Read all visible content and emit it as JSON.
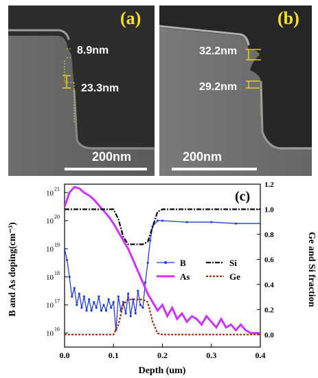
{
  "panel_a": {
    "label": "(a)",
    "measurement_top": "8.9nm",
    "measurement_bottom": "23.3nm",
    "scale_bar": "200nm"
  },
  "panel_b": {
    "label": "(b)",
    "measurement_top": "32.2nm",
    "measurement_bottom": "29.2nm",
    "scale_bar": "200nm"
  },
  "colors": {
    "label_yellow": "#f7e31b",
    "sem_background": "#2f2f2f",
    "B": "#1f3fd6",
    "As": "#cc33ff",
    "Si": "#000000",
    "Ge": "#a52a0a"
  },
  "chart_data": {
    "type": "line",
    "label": "(c)",
    "xlabel": "Depth (um)",
    "ylabel_left": "B and As doping(cm⁻³)",
    "ylabel_right": "Ge and Si fraction",
    "xlim": [
      0.0,
      0.4
    ],
    "xticks": [
      "0.0",
      "0.1",
      "0.2",
      "0.3",
      "0.4"
    ],
    "ylim_left_log10": [
      15.5,
      21.3
    ],
    "yticks_left": [
      "10",
      "10",
      "10",
      "10",
      "10",
      "10"
    ],
    "yticks_left_exp": [
      "16",
      "17",
      "18",
      "19",
      "20",
      "21"
    ],
    "ylim_right": [
      -0.1,
      1.2
    ],
    "yticks_right": [
      "0.0",
      "0.2",
      "0.4",
      "0.6",
      "0.8",
      "1.0",
      "1.2"
    ],
    "legend_placement": "center-right",
    "series": [
      {
        "name": "B",
        "axis": "left",
        "x": [
          0.0,
          0.005,
          0.01,
          0.015,
          0.02,
          0.025,
          0.03,
          0.035,
          0.04,
          0.045,
          0.05,
          0.055,
          0.06,
          0.065,
          0.07,
          0.075,
          0.08,
          0.085,
          0.09,
          0.095,
          0.1,
          0.105,
          0.11,
          0.115,
          0.12,
          0.125,
          0.13,
          0.135,
          0.14,
          0.145,
          0.15,
          0.155,
          0.16,
          0.165,
          0.17,
          0.175,
          0.18,
          0.19,
          0.2,
          0.25,
          0.3,
          0.35,
          0.4
        ],
        "log10_values": [
          19.0,
          18.6,
          18.0,
          17.3,
          17.6,
          17.0,
          17.4,
          16.9,
          17.3,
          16.8,
          17.2,
          16.8,
          17.1,
          16.9,
          17.3,
          16.8,
          17.0,
          16.8,
          17.2,
          16.9,
          17.1,
          16.1,
          17.3,
          16.8,
          17.1,
          16.7,
          17.4,
          16.6,
          17.2,
          16.7,
          17.5,
          17.0,
          16.9,
          17.8,
          18.5,
          19.3,
          19.8,
          20.0,
          20.0,
          19.95,
          19.95,
          19.9,
          19.9
        ]
      },
      {
        "name": "As",
        "axis": "left",
        "x": [
          0.0,
          0.01,
          0.02,
          0.03,
          0.04,
          0.05,
          0.06,
          0.07,
          0.08,
          0.09,
          0.1,
          0.11,
          0.12,
          0.13,
          0.14,
          0.15,
          0.16,
          0.17,
          0.18,
          0.19,
          0.2,
          0.21,
          0.22,
          0.23,
          0.24,
          0.25,
          0.26,
          0.27,
          0.28,
          0.29,
          0.3,
          0.31,
          0.32,
          0.33,
          0.34,
          0.35,
          0.36,
          0.37,
          0.38,
          0.39,
          0.4
        ],
        "log10_values": [
          20.5,
          21.0,
          21.2,
          21.15,
          21.0,
          20.9,
          20.75,
          20.55,
          20.35,
          20.15,
          19.9,
          19.6,
          19.3,
          19.0,
          18.6,
          18.2,
          17.8,
          17.4,
          17.1,
          16.8,
          17.0,
          16.6,
          16.9,
          16.5,
          16.7,
          16.4,
          16.6,
          16.5,
          16.3,
          16.6,
          16.4,
          16.2,
          16.5,
          16.2,
          16.3,
          16.1,
          16.3,
          16.1,
          16.0,
          16.0,
          16.0
        ]
      },
      {
        "name": "Si",
        "axis": "right",
        "x": [
          0.0,
          0.02,
          0.04,
          0.06,
          0.08,
          0.1,
          0.11,
          0.12,
          0.13,
          0.14,
          0.15,
          0.16,
          0.17,
          0.18,
          0.19,
          0.2,
          0.25,
          0.3,
          0.35,
          0.4
        ],
        "values": [
          1.0,
          1.0,
          1.0,
          1.0,
          1.0,
          1.0,
          0.92,
          0.78,
          0.72,
          0.72,
          0.72,
          0.72,
          0.74,
          0.86,
          0.98,
          1.0,
          1.0,
          1.0,
          1.0,
          1.0
        ]
      },
      {
        "name": "Ge",
        "axis": "right",
        "x": [
          0.0,
          0.02,
          0.04,
          0.06,
          0.08,
          0.1,
          0.11,
          0.12,
          0.13,
          0.14,
          0.15,
          0.16,
          0.17,
          0.18,
          0.19,
          0.2,
          0.25,
          0.3,
          0.35,
          0.4
        ],
        "values": [
          0.0,
          0.0,
          0.0,
          0.0,
          0.0,
          0.0,
          0.08,
          0.24,
          0.28,
          0.28,
          0.28,
          0.28,
          0.26,
          0.1,
          0.01,
          0.0,
          0.0,
          0.0,
          0.0,
          0.0
        ]
      }
    ]
  }
}
